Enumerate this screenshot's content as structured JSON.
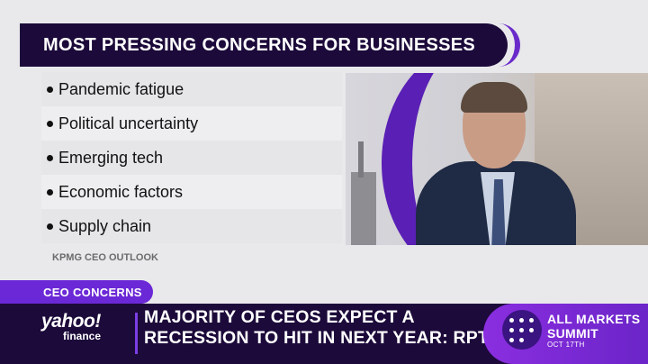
{
  "graphic": {
    "title": "MOST PRESSING CONCERNS FOR BUSINESSES",
    "items": [
      "Pandemic fatigue",
      "Political uncertainty",
      "Emerging tech",
      "Economic factors",
      "Supply chain"
    ],
    "source": "KPMG CEO OUTLOOK"
  },
  "lower_third": {
    "tag": "CEO CONCERNS",
    "headline_line1": "MAJORITY OF CEOS EXPECT A",
    "headline_line2": "RECESSION TO HIT IN NEXT YEAR: RPT"
  },
  "logo": {
    "top": "yahoo!",
    "bottom": "finance"
  },
  "summit": {
    "line1": "ALL MARKETS",
    "line2": "SUMMIT",
    "date": "OCT 17TH"
  },
  "colors": {
    "navy": "#1c0a3a",
    "purple": "#6b28d6"
  }
}
